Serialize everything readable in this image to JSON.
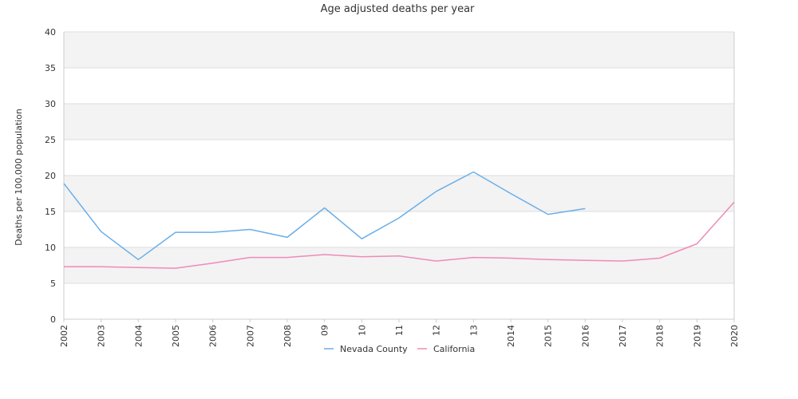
{
  "colors": {
    "nevada": "#6aaee8",
    "california": "#ef8bb7",
    "band": "#f3f3f3",
    "grid": "#dddddd",
    "axis": "#cccccc"
  },
  "chart_data": {
    "type": "line",
    "title": "Age adjusted deaths per year",
    "xlabel": "",
    "ylabel": "Deaths per 100,000 population",
    "ylim": [
      0,
      40
    ],
    "yticks": [
      "0",
      "5",
      "10",
      "15",
      "20",
      "25",
      "30",
      "35",
      "40"
    ],
    "categories": [
      "2002",
      "2003",
      "2004",
      "2005",
      "2006",
      "2007",
      "2008",
      "09",
      "10",
      "11",
      "12",
      "13",
      "2014",
      "2015",
      "2016",
      "2017",
      "2018",
      "2019",
      "2020"
    ],
    "grid": true,
    "legend": "bottom-center",
    "series": [
      {
        "name": "Nevada County",
        "color_key": "nevada",
        "values": [
          18.9,
          12.2,
          8.3,
          12.1,
          12.1,
          12.5,
          11.4,
          15.5,
          11.2,
          14.1,
          17.8,
          20.5,
          17.5,
          14.6,
          15.4,
          null,
          null,
          null,
          null
        ]
      },
      {
        "name": "California",
        "color_key": "california",
        "values": [
          7.3,
          7.3,
          7.2,
          7.1,
          7.8,
          8.6,
          8.6,
          9.0,
          8.7,
          8.8,
          8.1,
          8.6,
          8.5,
          8.3,
          8.2,
          8.1,
          8.5,
          10.5,
          16.3
        ]
      }
    ]
  }
}
